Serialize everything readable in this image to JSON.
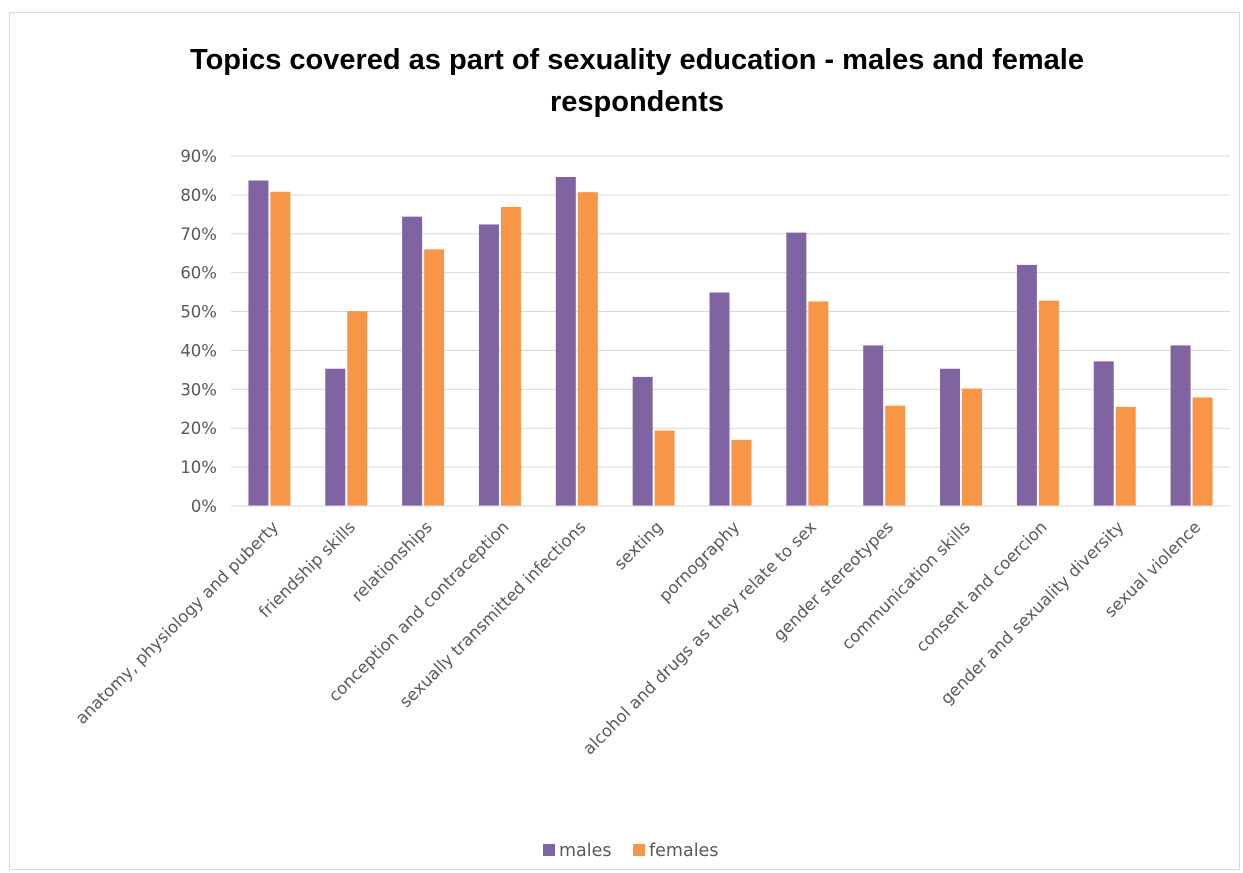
{
  "chart_data": {
    "type": "bar",
    "title": "Topics covered as part of sexuality education - males and female respondents",
    "title_lines": [
      "Topics covered as part of sexuality education - males and female",
      "respondents"
    ],
    "categories": [
      "anatomy, physiology and puberty",
      "friendship skills",
      "relationships",
      "conception and contraception",
      "sexually transmitted infections",
      "sexting",
      "pornography",
      "alcohol and drugs as they relate to sex",
      "gender stereotypes",
      "communication skills",
      "consent and coercion",
      "gender and sexuality diversity",
      "sexual violence"
    ],
    "series": [
      {
        "name": "males",
        "color": "#8064a2",
        "values": [
          83.7,
          35.3,
          74.4,
          72.4,
          84.6,
          33.2,
          54.9,
          70.3,
          41.3,
          35.3,
          62.0,
          37.2,
          41.3
        ]
      },
      {
        "name": "females",
        "color": "#f79646",
        "values": [
          80.8,
          50.1,
          66.0,
          76.9,
          80.7,
          19.4,
          17.0,
          52.6,
          25.8,
          30.2,
          52.8,
          25.5,
          27.9
        ]
      }
    ],
    "ylim": [
      0,
      90
    ],
    "yticks": [
      "0%",
      "10%",
      "20%",
      "30%",
      "40%",
      "50%",
      "60%",
      "70%",
      "80%",
      "90%"
    ],
    "xlabel": "",
    "ylabel": "",
    "grid": true,
    "legend": "bottom",
    "value_format": "percent"
  }
}
